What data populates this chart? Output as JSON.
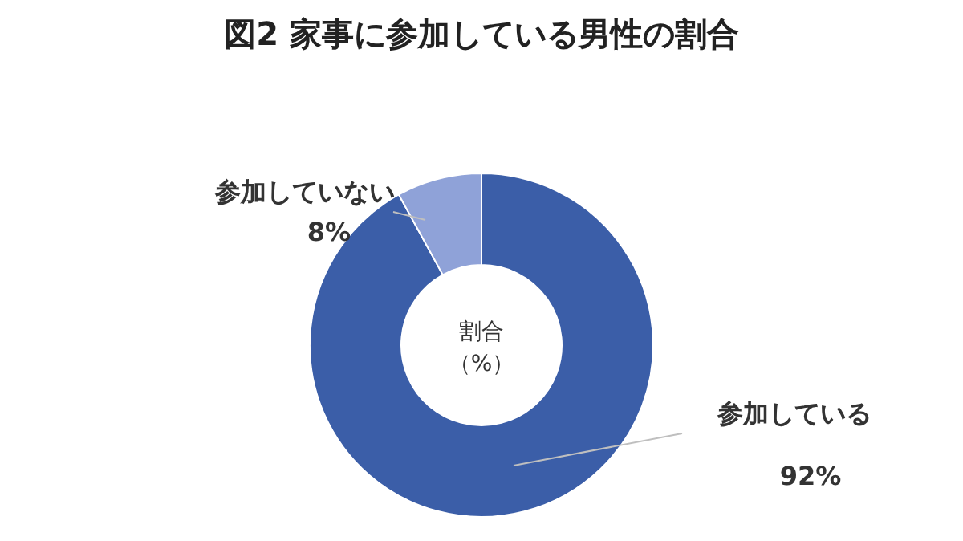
{
  "chart_data": {
    "type": "donut",
    "title": "図2 家事に参加している男性の割合",
    "categories": [
      "参加している",
      "参加していない"
    ],
    "values": [
      92,
      8
    ],
    "colors": [
      "#3b5ea8",
      "#8fa2d8"
    ],
    "value_labels": [
      "92%",
      "8%"
    ],
    "annotations": [
      "割合",
      "（%）"
    ]
  }
}
